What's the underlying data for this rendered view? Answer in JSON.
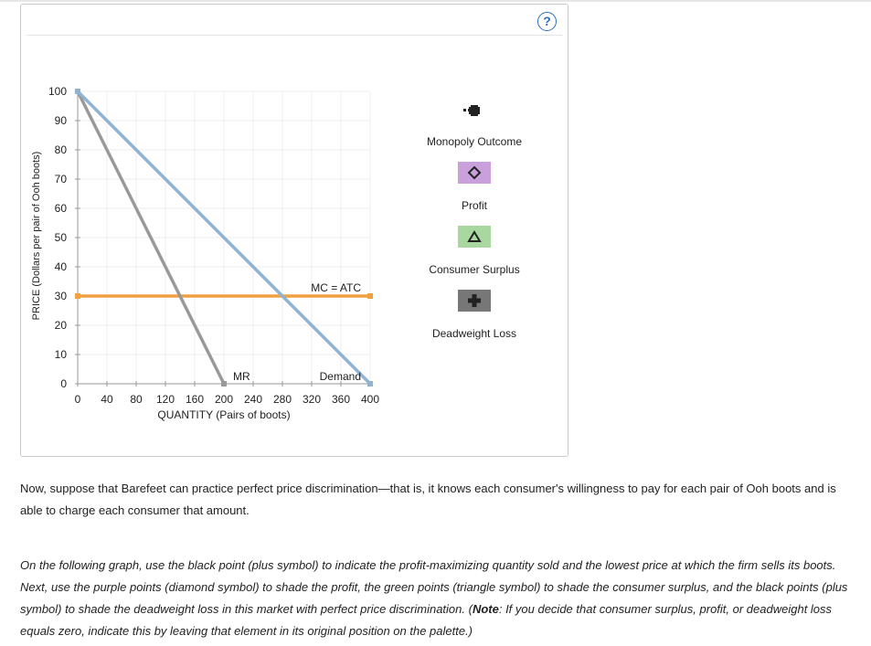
{
  "graph": {
    "help_label": "?",
    "chart_data": {
      "type": "line",
      "xlabel": "QUANTITY (Pairs of boots)",
      "ylabel": "PRICE (Dollars per pair of Ooh boots)",
      "xlim": [
        0,
        400
      ],
      "ylim": [
        0,
        100
      ],
      "x_ticks": [
        0,
        40,
        80,
        120,
        160,
        200,
        240,
        280,
        320,
        360,
        400
      ],
      "y_ticks": [
        0,
        10,
        20,
        30,
        40,
        50,
        60,
        70,
        80,
        90,
        100
      ],
      "grid": true,
      "series": [
        {
          "name": "Demand",
          "color": "#8fb3d3",
          "points": [
            [
              0,
              100
            ],
            [
              400,
              0
            ]
          ]
        },
        {
          "name": "MR",
          "color": "#999999",
          "points": [
            [
              0,
              100
            ],
            [
              200,
              0
            ]
          ]
        },
        {
          "name": "MC = ATC",
          "color": "#f0a040",
          "points": [
            [
              0,
              30
            ],
            [
              400,
              30
            ]
          ]
        }
      ]
    },
    "palette": [
      {
        "label": "Monopoly Outcome",
        "icon": "plus-icon",
        "color": "#222222"
      },
      {
        "label": "Profit",
        "icon": "diamond-icon",
        "color": "#c9a0dc"
      },
      {
        "label": "Consumer Surplus",
        "icon": "triangle-icon",
        "color": "#a8d8a0"
      },
      {
        "label": "Deadweight Loss",
        "icon": "plus-icon",
        "color": "#777777"
      }
    ]
  },
  "text": {
    "para1": "Now, suppose that Barefeet can practice perfect price discrimination—that is, it knows each consumer's willingness to pay for each pair of Ooh boots and is able to charge each consumer that amount.",
    "para2_start": "On the following graph, use the black point (plus symbol) to indicate the profit-maximizing quantity sold and the lowest price at which the firm sells its boots. Next, use the purple points (diamond symbol) to shade the profit, the green points (triangle symbol) to shade the consumer surplus, and the black points (plus symbol) to shade the deadweight loss in this market with perfect price discrimination. (",
    "para2_note": "Note",
    "para2_end": ": If you decide that consumer surplus, profit, or deadweight loss equals zero, indicate this by leaving that element in its original position on the palette.)"
  }
}
